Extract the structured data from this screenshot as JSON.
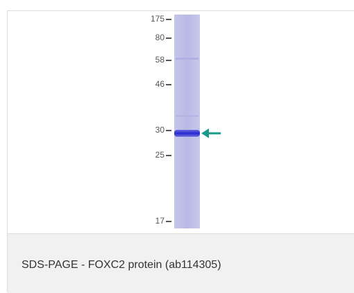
{
  "figure": {
    "markers": [
      "175",
      "80",
      "58",
      "46",
      "30",
      "25",
      "17"
    ],
    "caption": "SDS-PAGE - FOXC2 protein (ab114305)"
  }
}
